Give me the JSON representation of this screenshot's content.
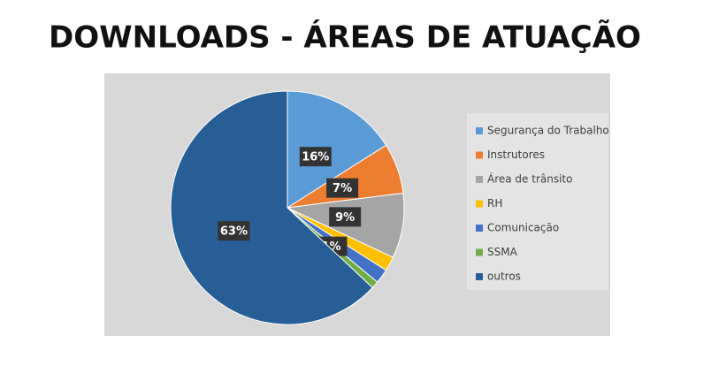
{
  "chart_data": {
    "type": "pie",
    "title": "DOWNLOADS - ÁREAS DE ATUAÇÃO",
    "categories": [
      "Segurança do Trabalho",
      "Instrutores",
      "Área de trânsito",
      "RH",
      "Comunicação",
      "SSMA",
      "outros"
    ],
    "values": [
      16,
      7,
      9,
      2,
      2,
      1,
      63
    ],
    "value_labels": [
      "16%",
      "7%",
      "9%",
      null,
      null,
      "1%",
      "63%"
    ],
    "colors": [
      "#5b9bd5",
      "#ed7d31",
      "#a5a5a5",
      "#ffc000",
      "#4472c4",
      "#70ad47",
      "#275e96"
    ],
    "legend": "right"
  }
}
